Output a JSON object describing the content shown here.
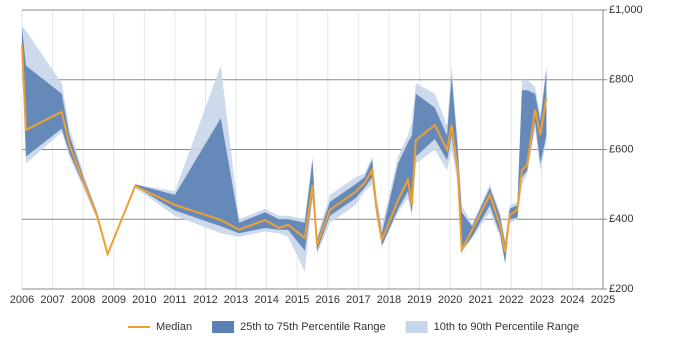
{
  "chart_data": {
    "type": "line",
    "x": [
      2006.0,
      2006.13,
      2007.3,
      2007.55,
      2008.05,
      2008.45,
      2008.8,
      2009.7,
      2011.0,
      2012.5,
      2013.1,
      2013.95,
      2014.4,
      2014.7,
      2015.25,
      2015.5,
      2015.65,
      2016.07,
      2016.9,
      2017.2,
      2017.45,
      2017.6,
      2017.77,
      2018.3,
      2018.62,
      2018.75,
      2018.88,
      2019.5,
      2019.9,
      2020.05,
      2020.25,
      2020.38,
      2020.72,
      2021.3,
      2021.63,
      2021.8,
      2021.95,
      2022.2,
      2022.35,
      2022.52,
      2022.78,
      2022.95,
      2023.15
    ],
    "series": [
      {
        "name": "Median",
        "color": "#f0a030",
        "values": [
          900,
          656,
          708,
          613,
          498,
          412,
          300,
          495,
          441,
          398,
          370,
          398,
          375,
          384,
          346,
          498,
          326,
          427,
          478,
          504,
          541,
          427,
          341,
          455,
          513,
          441,
          627,
          670,
          599,
          670,
          541,
          312,
          369,
          470,
          384,
          306,
          412,
          427,
          541,
          556,
          714,
          642,
          750
        ]
      },
      {
        "name": "25th to 75th Percentile Range",
        "color": "#5a80b4",
        "low": [
          880,
          580,
          660,
          590,
          490,
          405,
          300,
          495,
          425,
          380,
          360,
          375,
          370,
          370,
          310,
          470,
          310,
          410,
          460,
          490,
          520,
          410,
          325,
          430,
          480,
          420,
          580,
          630,
          570,
          640,
          520,
          310,
          350,
          440,
          360,
          275,
          400,
          405,
          520,
          540,
          680,
          560,
          640
        ],
        "high": [
          950,
          840,
          760,
          640,
          510,
          420,
          300,
          500,
          470,
          690,
          390,
          420,
          400,
          400,
          390,
          570,
          340,
          450,
          500,
          520,
          570,
          450,
          360,
          560,
          620,
          640,
          760,
          720,
          640,
          810,
          600,
          420,
          380,
          490,
          410,
          330,
          430,
          440,
          770,
          770,
          760,
          680,
          830
        ]
      },
      {
        "name": "10th to 90th Percentile Range",
        "color": "#c6d6ea",
        "low": [
          870,
          560,
          650,
          580,
          480,
          400,
          300,
          490,
          410,
          360,
          350,
          365,
          360,
          350,
          250,
          460,
          300,
          390,
          440,
          480,
          500,
          400,
          320,
          420,
          460,
          410,
          560,
          600,
          540,
          600,
          500,
          305,
          345,
          420,
          350,
          270,
          390,
          400,
          500,
          530,
          660,
          540,
          620
        ],
        "high": [
          955,
          940,
          790,
          660,
          520,
          425,
          300,
          500,
          480,
          840,
          400,
          430,
          410,
          410,
          400,
          580,
          350,
          470,
          520,
          530,
          580,
          460,
          380,
          580,
          640,
          680,
          790,
          760,
          670,
          840,
          620,
          440,
          385,
          500,
          420,
          340,
          440,
          450,
          800,
          800,
          780,
          700,
          840
        ]
      }
    ],
    "xlim": [
      2006,
      2025
    ],
    "xticks": [
      2006,
      2007,
      2008,
      2009,
      2010,
      2011,
      2012,
      2013,
      2014,
      2015,
      2016,
      2017,
      2018,
      2019,
      2020,
      2021,
      2022,
      2023,
      2024,
      2025
    ],
    "ylim": [
      200,
      1000
    ],
    "yticks": [
      {
        "value": 200,
        "label": "£200"
      },
      {
        "value": 400,
        "label": "£400"
      },
      {
        "value": 600,
        "label": "£600"
      },
      {
        "value": 800,
        "label": "£800"
      },
      {
        "value": 1000,
        "label": "£1,000"
      }
    ],
    "grid": true,
    "legend": "bottom"
  }
}
